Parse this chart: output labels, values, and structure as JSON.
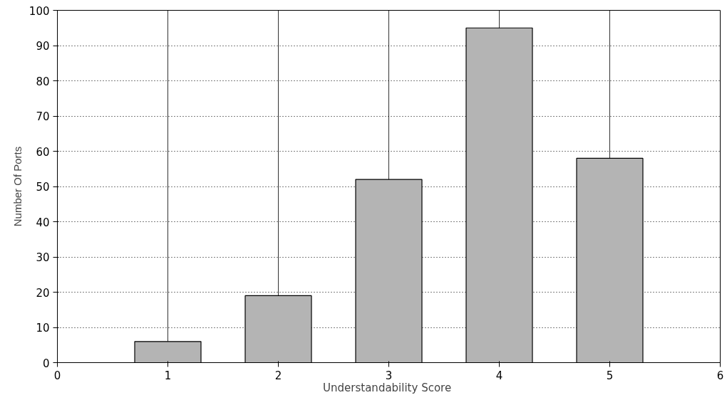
{
  "chart_data": {
    "type": "bar",
    "xlabel": "Understandability  Score",
    "ylabel": "Number Of Ports",
    "x": [
      1,
      2,
      3,
      4,
      5
    ],
    "values": [
      6,
      19,
      52,
      95,
      58
    ],
    "color": "#b4b4b4",
    "xlim": [
      0,
      6
    ],
    "xticks": [
      0,
      1,
      2,
      3,
      4,
      5,
      6
    ],
    "ylim": [
      0,
      100
    ],
    "yticks": [
      0,
      10,
      20,
      30,
      40,
      50,
      60,
      70,
      80,
      90,
      100
    ],
    "grid": true
  }
}
